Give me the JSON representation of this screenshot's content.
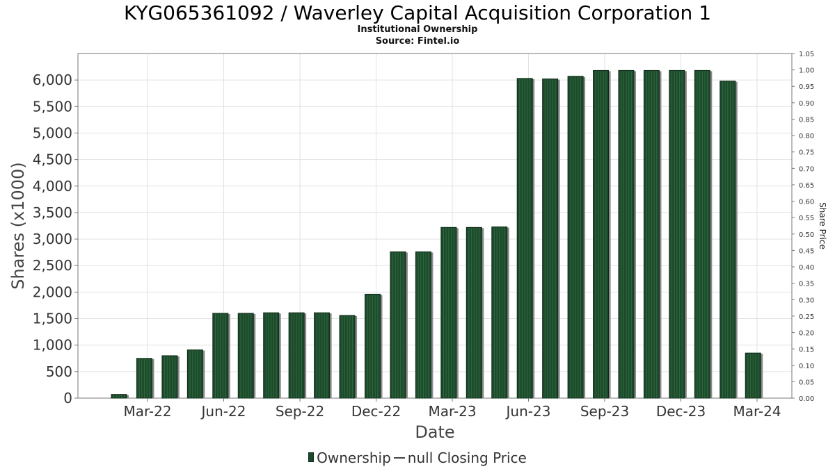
{
  "chart_data": {
    "type": "bar",
    "title": "KYG065361092 / Waverley Capital Acquisition Corporation 1",
    "subtitle": "Institutional Ownership",
    "source": "Source: Fintel.io",
    "xlabel": "Date",
    "ylabel": "Shares (x1000)",
    "ylabel_right": "Share Price",
    "x_tick_labels": [
      "Mar-22",
      "Jun-22",
      "Sep-22",
      "Dec-22",
      "Mar-23",
      "Jun-23",
      "Sep-23",
      "Dec-23",
      "Mar-24"
    ],
    "y_ticks": [
      "0",
      "500",
      "1,000",
      "1,500",
      "2,000",
      "2,500",
      "3,000",
      "3,500",
      "4,000",
      "4,500",
      "5,000",
      "5,500",
      "6,000"
    ],
    "y_right_ticks": [
      "0.00",
      "0.05",
      "0.10",
      "0.15",
      "0.20",
      "0.25",
      "0.30",
      "0.35",
      "0.40",
      "0.45",
      "0.50",
      "0.55",
      "0.60",
      "0.65",
      "0.70",
      "0.75",
      "0.80",
      "0.85",
      "0.90",
      "0.95",
      "1.00",
      "1.05"
    ],
    "ylim": [
      0,
      6500
    ],
    "ylim_right": [
      0,
      1.05
    ],
    "values": [
      70,
      750,
      800,
      910,
      1600,
      1600,
      1610,
      1610,
      1610,
      1560,
      1960,
      2760,
      2760,
      3220,
      3220,
      3230,
      6030,
      6020,
      6070,
      6180,
      6180,
      6180,
      6180,
      6180,
      5980,
      850
    ],
    "series": [
      {
        "name": "Ownership",
        "color": "#1e4a2c"
      },
      {
        "name": "null Closing Price",
        "color": "#444444"
      }
    ],
    "grid": true,
    "legend_position": "bottom"
  },
  "legend": {
    "ownership": "Ownership",
    "closing_price": "null Closing Price"
  }
}
